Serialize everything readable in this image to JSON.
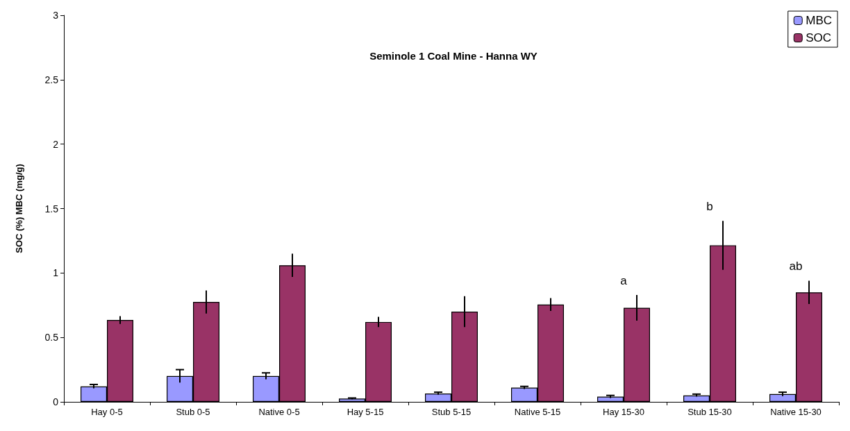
{
  "chart_data": {
    "type": "bar",
    "title": "Seminole 1 Coal Mine - Hanna WY",
    "ylabel": "SOC (%) MBC (mg/g)",
    "categories": [
      "Hay 0-5",
      "Stub 0-5",
      "Native 0-5",
      "Hay 5-15",
      "Stub 5-15",
      "Native 5-15",
      "Hay 15-30",
      "Stub 15-30",
      "Native 15-30"
    ],
    "series": [
      {
        "name": "MBC",
        "color": "#9999ff",
        "values": [
          0.12,
          0.2,
          0.2,
          0.025,
          0.065,
          0.11,
          0.04,
          0.05,
          0.06
        ],
        "errors": [
          0.015,
          0.05,
          0.025,
          0.005,
          0.01,
          0.01,
          0.01,
          0.01,
          0.015
        ]
      },
      {
        "name": "SOC",
        "color": "#993366",
        "values": [
          0.635,
          0.775,
          1.06,
          0.62,
          0.7,
          0.755,
          0.73,
          1.215,
          0.85
        ],
        "errors": [
          0.03,
          0.09,
          0.09,
          0.04,
          0.12,
          0.05,
          0.1,
          0.19,
          0.09
        ]
      }
    ],
    "annotations": [
      "a",
      "b",
      "ab"
    ],
    "ylim": [
      0,
      3
    ],
    "yticks": [
      0,
      0.5,
      1,
      1.5,
      2,
      2.5,
      3
    ],
    "grid": false,
    "legend": "top right"
  }
}
